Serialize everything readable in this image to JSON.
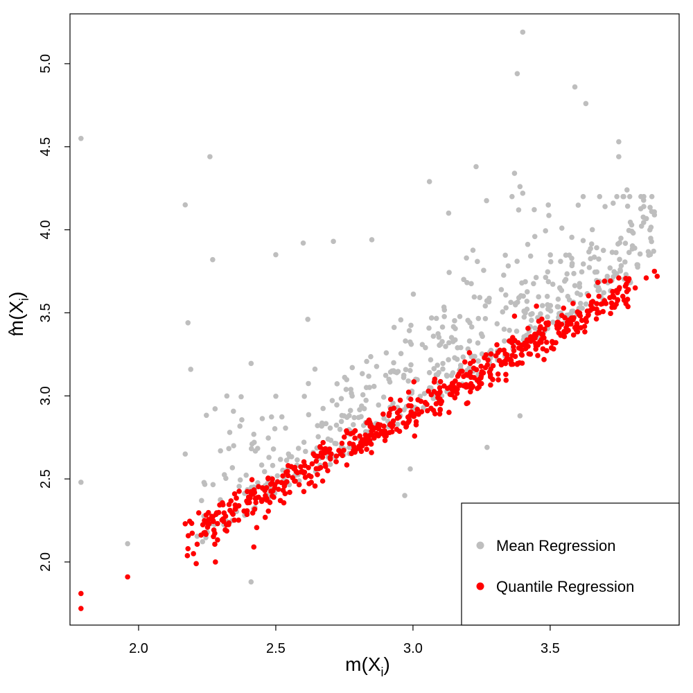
{
  "chart_data": {
    "type": "scatter",
    "title": "",
    "xlabel": "m(X",
    "xlabel_sub": "i",
    "xlabel_close": ")",
    "ylabel": "m(X",
    "ylabel_hat": "^",
    "ylabel_sub": "i",
    "ylabel_close": ")",
    "xlim": [
      1.75,
      3.97
    ],
    "ylim": [
      1.62,
      5.3
    ],
    "x_ticks": [
      2.0,
      2.5,
      3.0,
      3.5
    ],
    "x_tick_labels": [
      "2.0",
      "2.5",
      "3.0",
      "3.5"
    ],
    "y_ticks": [
      2.0,
      2.5,
      3.0,
      3.5,
      4.0,
      4.5,
      5.0
    ],
    "y_tick_labels": [
      "2.0",
      "2.5",
      "3.0",
      "3.5",
      "4.0",
      "4.5",
      "5.0"
    ],
    "grid": false,
    "legend_position": "bottom-right",
    "series": [
      {
        "name": "Mean Regression",
        "color": "#bebebe",
        "trend": {
          "slope": 1.0,
          "intercept": 0.0,
          "spread": 0.35
        },
        "n_points": 600,
        "points": [
          [
            1.79,
            4.55
          ],
          [
            1.79,
            2.48
          ],
          [
            1.96,
            2.11
          ],
          [
            2.17,
            4.15
          ],
          [
            2.18,
            3.44
          ],
          [
            2.19,
            3.16
          ],
          [
            2.26,
            4.44
          ],
          [
            2.27,
            3.82
          ],
          [
            2.17,
            2.65
          ],
          [
            2.41,
            1.88
          ],
          [
            2.5,
            3.85
          ],
          [
            2.6,
            3.92
          ],
          [
            2.71,
            3.93
          ],
          [
            2.85,
            3.94
          ],
          [
            3.06,
            4.29
          ],
          [
            3.23,
            4.38
          ],
          [
            3.37,
            4.34
          ],
          [
            3.38,
            4.94
          ],
          [
            3.4,
            5.19
          ],
          [
            3.59,
            4.86
          ],
          [
            3.63,
            4.76
          ],
          [
            3.75,
            4.53
          ],
          [
            3.75,
            4.44
          ],
          [
            3.78,
            4.24
          ],
          [
            3.7,
            4.14
          ],
          [
            3.87,
            4.11
          ],
          [
            3.88,
            4.09
          ],
          [
            3.39,
            4.26
          ],
          [
            3.4,
            4.22
          ],
          [
            3.13,
            4.1
          ],
          [
            3.39,
            2.88
          ],
          [
            3.27,
            2.69
          ],
          [
            2.99,
            2.56
          ],
          [
            2.97,
            2.4
          ]
        ]
      },
      {
        "name": "Quantile Regression",
        "color": "#ff0000",
        "trend": {
          "slope": 0.93,
          "intercept": 0.12,
          "spread": 0.06
        },
        "n_points": 600,
        "points": [
          [
            1.79,
            1.81
          ],
          [
            1.79,
            1.72
          ],
          [
            1.96,
            1.91
          ],
          [
            2.17,
            2.23
          ],
          [
            2.18,
            2.08
          ],
          [
            2.2,
            2.05
          ],
          [
            2.21,
            1.99
          ],
          [
            2.28,
            2.0
          ],
          [
            2.35,
            2.41
          ],
          [
            2.42,
            2.09
          ],
          [
            3.45,
            3.54
          ],
          [
            3.37,
            3.48
          ],
          [
            3.75,
            3.71
          ],
          [
            3.85,
            3.71
          ],
          [
            3.88,
            3.75
          ],
          [
            3.89,
            3.72
          ],
          [
            3.81,
            3.65
          ]
        ]
      }
    ]
  }
}
